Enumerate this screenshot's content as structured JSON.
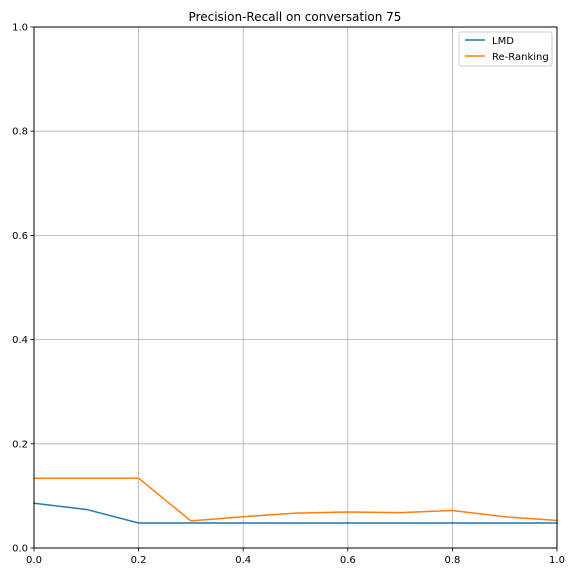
{
  "chart_data": {
    "type": "line",
    "title": "Precision-Recall on conversation 75",
    "xlabel": "",
    "ylabel": "",
    "xlim": [
      0,
      1
    ],
    "ylim": [
      0,
      1
    ],
    "xticks": [
      0.0,
      0.2,
      0.4,
      0.6,
      0.8,
      1.0
    ],
    "xtick_labels": [
      "0.0",
      "0.2",
      "0.4",
      "0.6",
      "0.8",
      "1.0"
    ],
    "yticks": [
      0.0,
      0.2,
      0.4,
      0.6,
      0.8,
      1.0
    ],
    "ytick_labels": [
      "0.0",
      "0.2",
      "0.4",
      "0.6",
      "0.8",
      "1.0"
    ],
    "grid": true,
    "legend_position": "top-right",
    "x": [
      0.0,
      0.1,
      0.2,
      0.3,
      0.4,
      0.5,
      0.6,
      0.7,
      0.8,
      0.9,
      1.0
    ],
    "series": [
      {
        "name": "LMD",
        "color": "#1f77b4",
        "values": [
          0.086,
          0.074,
          0.048,
          0.048,
          0.048,
          0.048,
          0.048,
          0.048,
          0.048,
          0.048,
          0.048
        ]
      },
      {
        "name": "Re-Ranking",
        "color": "#ff7f0e",
        "values": [
          0.134,
          0.134,
          0.134,
          0.052,
          0.06,
          0.067,
          0.069,
          0.068,
          0.072,
          0.06,
          0.053
        ]
      }
    ]
  }
}
